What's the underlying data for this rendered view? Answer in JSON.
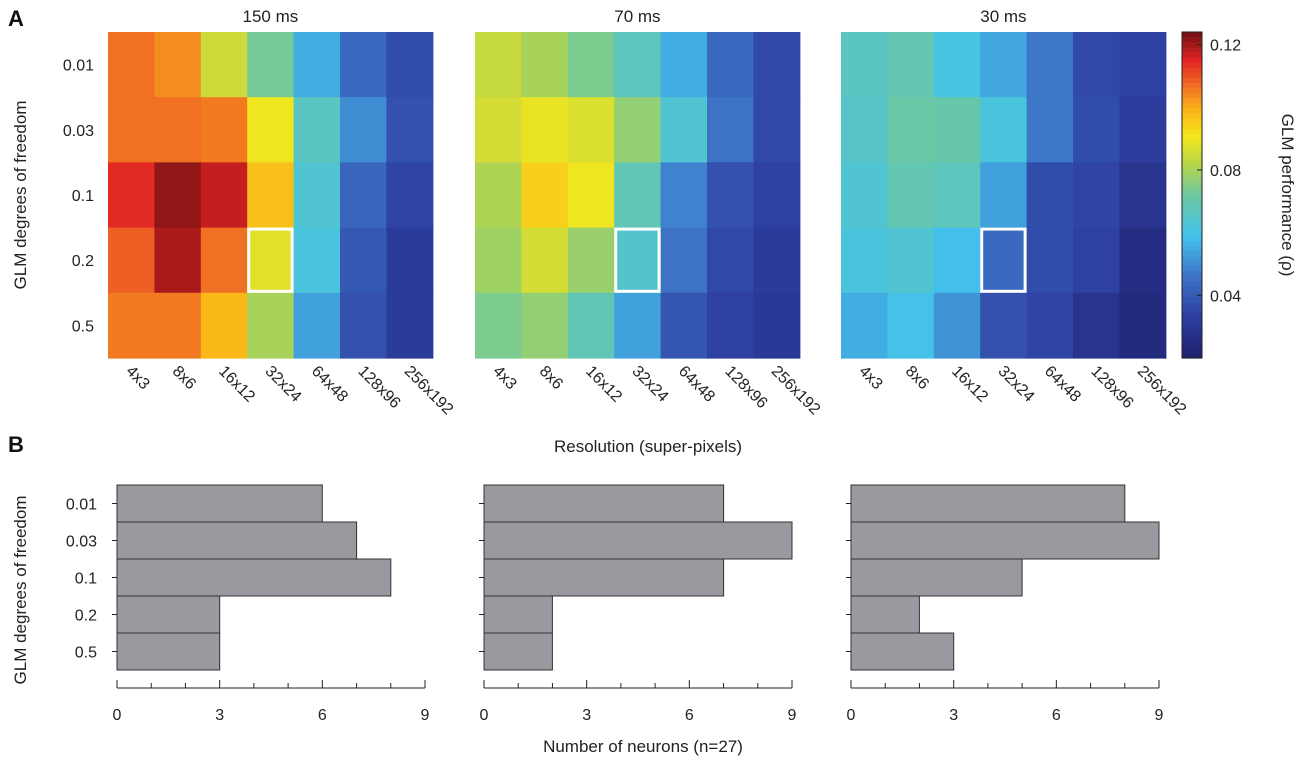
{
  "panel_letters": [
    "A",
    "B"
  ],
  "chart_data": [
    {
      "type": "heatmap",
      "panel": "A",
      "ylabel": "GLM degrees of freedom",
      "xlabel": "Resolution (super-pixels)",
      "y_categories": [
        "0.01",
        "0.03",
        "0.1",
        "0.2",
        "0.5"
      ],
      "x_categories": [
        "4x3",
        "8x6",
        "16x12",
        "32x24",
        "64x48",
        "128x96",
        "256x192"
      ],
      "colorbar": {
        "label": "GLM performance (ρ)",
        "ticks": [
          "0.12",
          "0.08",
          "0.04"
        ],
        "range": [
          0.02,
          0.124
        ],
        "colormap": "parula-jet"
      },
      "highlight_cell": {
        "row": 3,
        "col": 3
      },
      "subplots": [
        {
          "title": "150 ms",
          "values": [
            [
              0.107,
              0.104,
              0.085,
              0.073,
              0.055,
              0.043,
              0.036
            ],
            [
              0.107,
              0.107,
              0.106,
              0.09,
              0.066,
              0.05,
              0.037
            ],
            [
              0.115,
              0.122,
              0.118,
              0.098,
              0.063,
              0.042,
              0.034
            ],
            [
              0.109,
              0.12,
              0.107,
              0.088,
              0.061,
              0.039,
              0.031
            ],
            [
              0.106,
              0.106,
              0.099,
              0.08,
              0.053,
              0.037,
              0.031
            ]
          ]
        },
        {
          "title": "70 ms",
          "values": [
            [
              0.084,
              0.08,
              0.074,
              0.067,
              0.055,
              0.043,
              0.035
            ],
            [
              0.086,
              0.089,
              0.087,
              0.077,
              0.063,
              0.045,
              0.035
            ],
            [
              0.081,
              0.095,
              0.09,
              0.068,
              0.048,
              0.037,
              0.033
            ],
            [
              0.079,
              0.086,
              0.078,
              0.064,
              0.045,
              0.035,
              0.031
            ],
            [
              0.074,
              0.077,
              0.068,
              0.053,
              0.038,
              0.033,
              0.03
            ]
          ]
        },
        {
          "title": "30 ms",
          "values": [
            [
              0.066,
              0.069,
              0.06,
              0.054,
              0.046,
              0.035,
              0.033
            ],
            [
              0.065,
              0.071,
              0.07,
              0.061,
              0.046,
              0.036,
              0.032
            ],
            [
              0.063,
              0.069,
              0.067,
              0.053,
              0.036,
              0.034,
              0.028
            ],
            [
              0.061,
              0.063,
              0.058,
              0.043,
              0.036,
              0.033,
              0.025
            ],
            [
              0.055,
              0.059,
              0.051,
              0.037,
              0.034,
              0.028,
              0.024
            ]
          ]
        }
      ]
    },
    {
      "type": "bar",
      "orientation": "horizontal",
      "panel": "B",
      "ylabel": "GLM degrees of freedom",
      "xlabel": "Number of neurons (n=27)",
      "categories": [
        "0.01",
        "0.03",
        "0.1",
        "0.2",
        "0.5"
      ],
      "xlim": [
        0,
        9
      ],
      "xticks": [
        "0",
        "3",
        "6",
        "9"
      ],
      "series": [
        {
          "name": "150 ms",
          "values": [
            6,
            7,
            8,
            3,
            3
          ]
        },
        {
          "name": "70 ms",
          "values": [
            7,
            9,
            7,
            2,
            2
          ]
        },
        {
          "name": "30 ms",
          "values": [
            8,
            9,
            5,
            2,
            3
          ]
        }
      ],
      "bar_color": "#999aa0"
    }
  ]
}
